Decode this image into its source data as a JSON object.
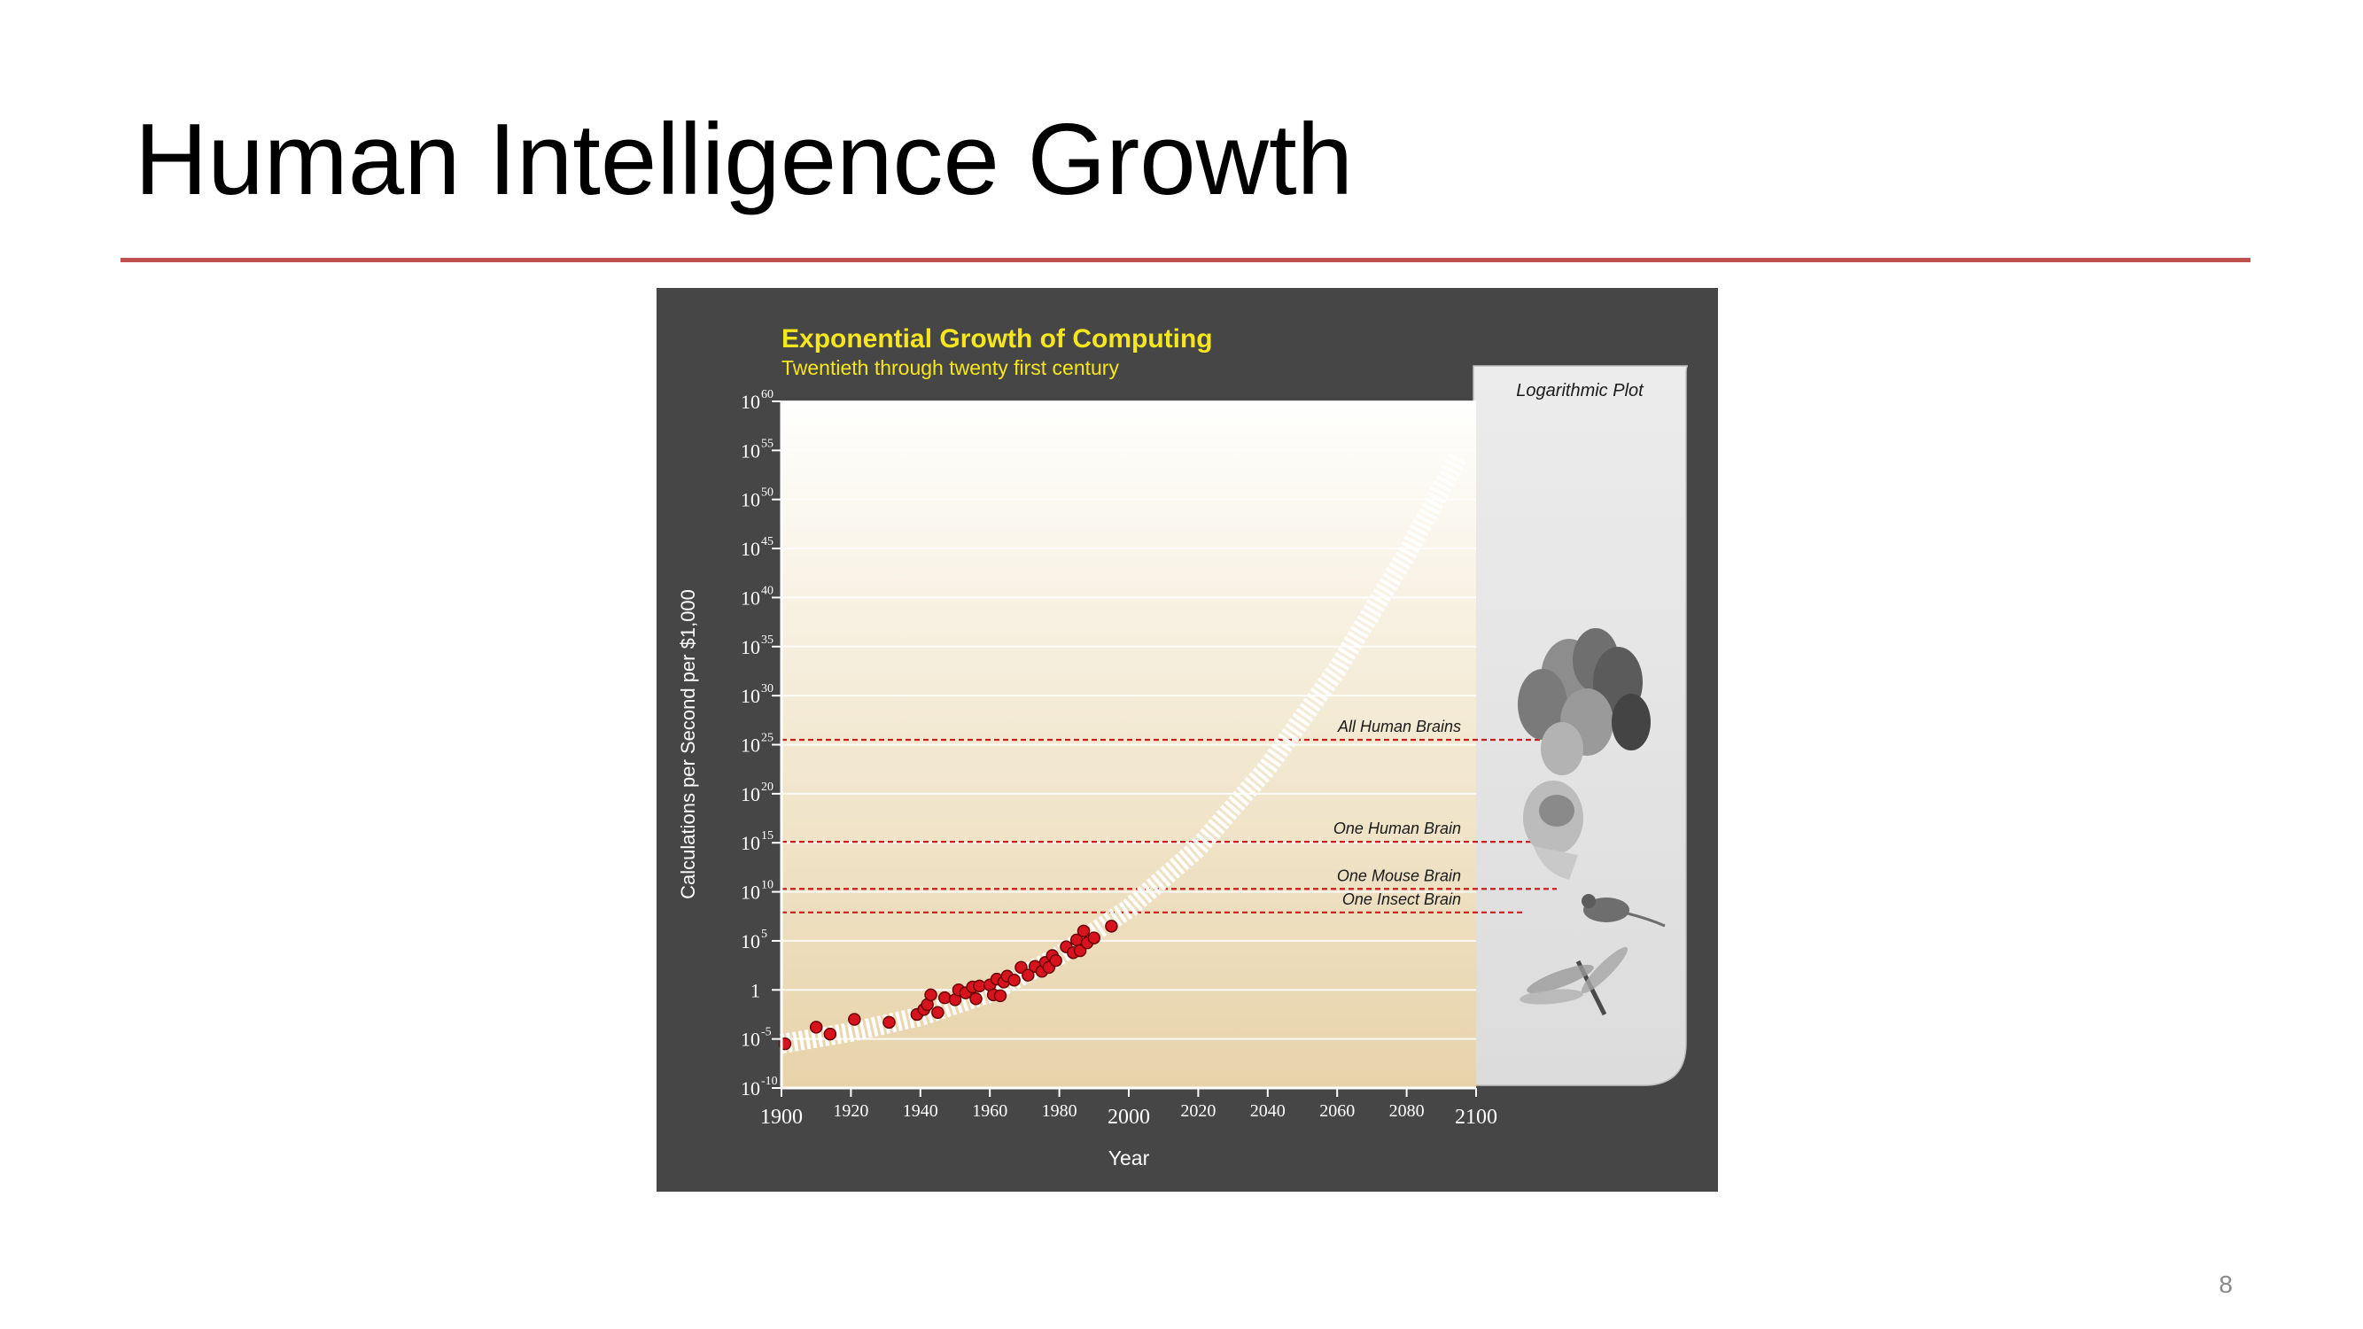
{
  "slide": {
    "title": "Human Intelligence Growth",
    "page_number": "8"
  },
  "colors": {
    "title_rule": "#c0504d",
    "figure_background": "#464646",
    "chart_title": "#f5e61e",
    "data_point": "#d7141e",
    "threshold_line": "#c81e1e",
    "trend_band": "#ffffff"
  },
  "chart_data": {
    "type": "scatter",
    "title": "Exponential Growth of Computing",
    "subtitle": "Twentieth through twenty first century",
    "xlabel": "Year",
    "ylabel": "Calculations per Second per $1,000",
    "log_scale_y": true,
    "panel_label": "Logarithmic Plot",
    "xlim": [
      1900,
      2100
    ],
    "ylim_exponent": [
      -10,
      60
    ],
    "x_ticks": [
      1900,
      1920,
      1940,
      1960,
      1980,
      2000,
      2020,
      2040,
      2060,
      2080,
      2100
    ],
    "y_ticks": [
      {
        "exp": -10,
        "base": "10",
        "sup": "-10"
      },
      {
        "exp": -5,
        "base": "10",
        "sup": "-5"
      },
      {
        "exp": 0,
        "base": "1",
        "sup": ""
      },
      {
        "exp": 5,
        "base": "10",
        "sup": "5"
      },
      {
        "exp": 10,
        "base": "10",
        "sup": "10"
      },
      {
        "exp": 15,
        "base": "10",
        "sup": "15"
      },
      {
        "exp": 20,
        "base": "10",
        "sup": "20"
      },
      {
        "exp": 25,
        "base": "10",
        "sup": "25"
      },
      {
        "exp": 30,
        "base": "10",
        "sup": "30"
      },
      {
        "exp": 35,
        "base": "10",
        "sup": "35"
      },
      {
        "exp": 40,
        "base": "10",
        "sup": "40"
      },
      {
        "exp": 45,
        "base": "10",
        "sup": "45"
      },
      {
        "exp": 50,
        "base": "10",
        "sup": "50"
      },
      {
        "exp": 55,
        "base": "10",
        "sup": "55"
      },
      {
        "exp": 60,
        "base": "10",
        "sup": "60"
      }
    ],
    "thresholds": [
      {
        "label": "All Human Brains",
        "exp": 25.5
      },
      {
        "label": "One Human Brain",
        "exp": 15.1
      },
      {
        "label": "One Mouse Brain",
        "exp": 10.3
      },
      {
        "label": "One Insect Brain",
        "exp": 7.9
      }
    ],
    "trend": {
      "years": [
        1900,
        1920,
        1940,
        1960,
        1980,
        2000,
        2020,
        2040,
        2060,
        2080,
        2095
      ],
      "exp": [
        -5.5,
        -4.3,
        -2.7,
        -0.3,
        3.5,
        8.3,
        14.5,
        22.7,
        32.7,
        44.4,
        54.5
      ]
    },
    "points": [
      {
        "x": 1901,
        "y": -5.5
      },
      {
        "x": 1910,
        "y": -3.8
      },
      {
        "x": 1914,
        "y": -4.5
      },
      {
        "x": 1921,
        "y": -3.0
      },
      {
        "x": 1931,
        "y": -3.3
      },
      {
        "x": 1939,
        "y": -2.5
      },
      {
        "x": 1941,
        "y": -2.0
      },
      {
        "x": 1942,
        "y": -1.5
      },
      {
        "x": 1943,
        "y": -0.5
      },
      {
        "x": 1945,
        "y": -2.3
      },
      {
        "x": 1947,
        "y": -0.8
      },
      {
        "x": 1950,
        "y": -1.0
      },
      {
        "x": 1951,
        "y": 0.0
      },
      {
        "x": 1953,
        "y": -0.3
      },
      {
        "x": 1955,
        "y": 0.3
      },
      {
        "x": 1956,
        "y": -0.9
      },
      {
        "x": 1957,
        "y": 0.4
      },
      {
        "x": 1960,
        "y": 0.5
      },
      {
        "x": 1961,
        "y": -0.5
      },
      {
        "x": 1962,
        "y": 1.1
      },
      {
        "x": 1963,
        "y": -0.6
      },
      {
        "x": 1964,
        "y": 0.8
      },
      {
        "x": 1965,
        "y": 1.4
      },
      {
        "x": 1967,
        "y": 1.0
      },
      {
        "x": 1969,
        "y": 2.3
      },
      {
        "x": 1971,
        "y": 1.5
      },
      {
        "x": 1973,
        "y": 2.4
      },
      {
        "x": 1975,
        "y": 1.9
      },
      {
        "x": 1976,
        "y": 2.8
      },
      {
        "x": 1977,
        "y": 2.3
      },
      {
        "x": 1978,
        "y": 3.5
      },
      {
        "x": 1979,
        "y": 3.0
      },
      {
        "x": 1982,
        "y": 4.4
      },
      {
        "x": 1984,
        "y": 3.8
      },
      {
        "x": 1985,
        "y": 5.1
      },
      {
        "x": 1986,
        "y": 4.0
      },
      {
        "x": 1987,
        "y": 6.0
      },
      {
        "x": 1988,
        "y": 4.8
      },
      {
        "x": 1990,
        "y": 5.3
      },
      {
        "x": 1995,
        "y": 6.5
      }
    ]
  }
}
